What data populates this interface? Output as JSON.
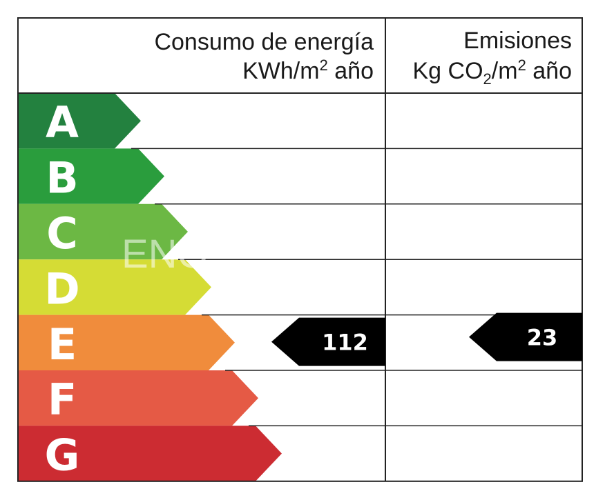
{
  "header": {
    "energy_title": "Consumo de energía",
    "energy_unit_prefix": "KWh/m",
    "energy_unit_sup": "2",
    "energy_unit_suffix": " año",
    "emissions_title": "Emisiones",
    "emissions_unit_prefix": "Kg CO",
    "emissions_unit_sub": "2",
    "emissions_unit_mid": "/m",
    "emissions_unit_sup": "2",
    "emissions_unit_suffix": " año"
  },
  "watermark": "ENO",
  "ratings": [
    {
      "letter": "A",
      "color": "#23813f"
    },
    {
      "letter": "B",
      "color": "#2a9d3d"
    },
    {
      "letter": "C",
      "color": "#6cb844"
    },
    {
      "letter": "D",
      "color": "#d5dc35"
    },
    {
      "letter": "E",
      "color": "#f08c3c"
    },
    {
      "letter": "F",
      "color": "#e55a45"
    },
    {
      "letter": "G",
      "color": "#cc2c32"
    }
  ],
  "energy_value": {
    "value": "112",
    "rating": "E"
  },
  "emissions_value": {
    "value": "23",
    "rating": "E"
  },
  "colors": {
    "grid": "#222222",
    "indicator": "#000000"
  }
}
